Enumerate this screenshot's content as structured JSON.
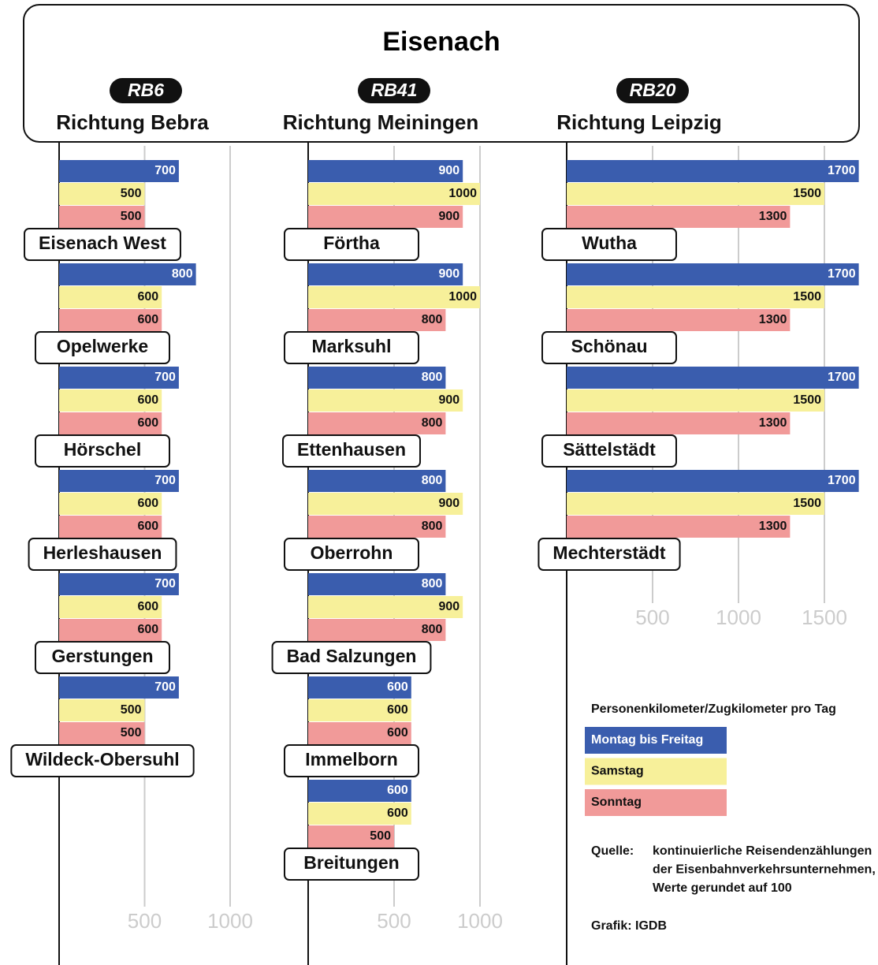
{
  "header": {
    "title": "Eisenach"
  },
  "chart_data": [
    {
      "type": "bar",
      "title": "RB6",
      "subtitle": "Richtung Bebra",
      "categories": [
        "Eisenach West",
        "Opelwerke",
        "Hörschel",
        "Herleshausen",
        "Gerstungen",
        "Wildeck-Obersuhl"
      ],
      "series": [
        {
          "values": [
            700,
            800,
            700,
            700,
            700,
            700
          ]
        },
        {
          "values": [
            500,
            600,
            600,
            600,
            600,
            500
          ]
        },
        {
          "values": [
            500,
            600,
            600,
            600,
            600,
            500
          ]
        }
      ],
      "xlim": [
        0,
        1400
      ],
      "xticks": [
        500,
        1000
      ],
      "grid": true
    },
    {
      "type": "bar",
      "title": "RB41",
      "subtitle": "Richtung Meiningen",
      "categories": [
        "Förtha",
        "Marksuhl",
        "Ettenhausen",
        "Oberrohn",
        "Bad Salzungen",
        "Immelborn",
        "Breitungen"
      ],
      "series": [
        {
          "values": [
            900,
            900,
            800,
            800,
            800,
            600,
            600
          ]
        },
        {
          "values": [
            1000,
            1000,
            900,
            900,
            900,
            600,
            600
          ]
        },
        {
          "values": [
            900,
            800,
            800,
            800,
            800,
            600,
            500
          ]
        }
      ],
      "xlim": [
        0,
        1400
      ],
      "xticks": [
        500,
        1000
      ],
      "grid": true
    },
    {
      "type": "bar",
      "title": "RB20",
      "subtitle": "Richtung Leipzig",
      "categories": [
        "Wutha",
        "Schönau",
        "Sättelstädt",
        "Mechterstädt"
      ],
      "series": [
        {
          "values": [
            1700,
            1700,
            1700,
            1700
          ]
        },
        {
          "values": [
            1500,
            1500,
            1500,
            1500
          ]
        },
        {
          "values": [
            1300,
            1300,
            1300,
            1300
          ]
        }
      ],
      "xlim": [
        0,
        1800
      ],
      "xticks": [
        500,
        1000,
        1500
      ],
      "grid": true
    }
  ],
  "legend": {
    "title": "Personenkilometer/Zugkilometer pro Tag",
    "items": [
      {
        "name": "Montag bis Freitag",
        "color": "#3a5dae"
      },
      {
        "name": "Samstag",
        "color": "#f7f09a"
      },
      {
        "name": "Sonntag",
        "color": "#f19a99"
      }
    ]
  },
  "source": {
    "label": "Quelle:",
    "lines": [
      "kontinuierliche Reisendenzählungen",
      "der Eisenbahnverkehrsunternehmen,",
      "Werte gerundet auf 100"
    ]
  },
  "credit": "Grafik: IGDB"
}
